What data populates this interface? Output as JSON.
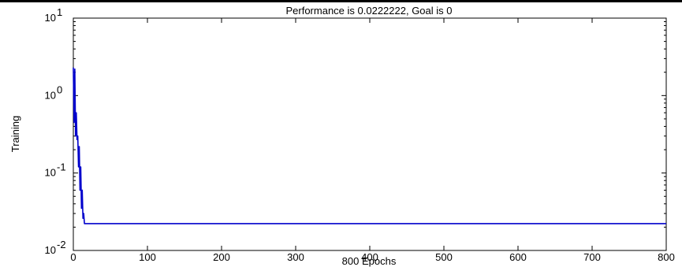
{
  "chart_data": {
    "type": "line",
    "title": "Performance is 0.0222222, Goal is 0",
    "xlabel": "800 Epochs",
    "ylabel": "Training",
    "xlim": [
      0,
      800
    ],
    "ylim": [
      0.01,
      10
    ],
    "yscale": "log",
    "x_ticks": [
      0,
      100,
      200,
      300,
      400,
      500,
      600,
      700,
      800
    ],
    "y_ticks": [
      {
        "value": 10,
        "base": "10",
        "exp": "1"
      },
      {
        "value": 1,
        "base": "10",
        "exp": "0"
      },
      {
        "value": 0.1,
        "base": "10",
        "exp": "-1"
      },
      {
        "value": 0.01,
        "base": "10",
        "exp": "-2"
      }
    ],
    "grid": false,
    "series": [
      {
        "color": "#0000cc",
        "x": [
          0,
          1,
          2,
          3,
          4,
          5,
          6,
          7,
          8,
          9,
          10,
          11,
          12,
          13,
          14,
          15,
          20,
          100,
          200,
          300,
          400,
          500,
          600,
          700,
          800
        ],
        "y": [
          2.3,
          0.45,
          2.2,
          0.3,
          0.6,
          0.27,
          0.3,
          0.12,
          0.22,
          0.06,
          0.12,
          0.035,
          0.06,
          0.026,
          0.03,
          0.0222222,
          0.0222222,
          0.0222222,
          0.0222222,
          0.0222222,
          0.0222222,
          0.0222222,
          0.0222222,
          0.0222222,
          0.0222222
        ]
      }
    ]
  }
}
